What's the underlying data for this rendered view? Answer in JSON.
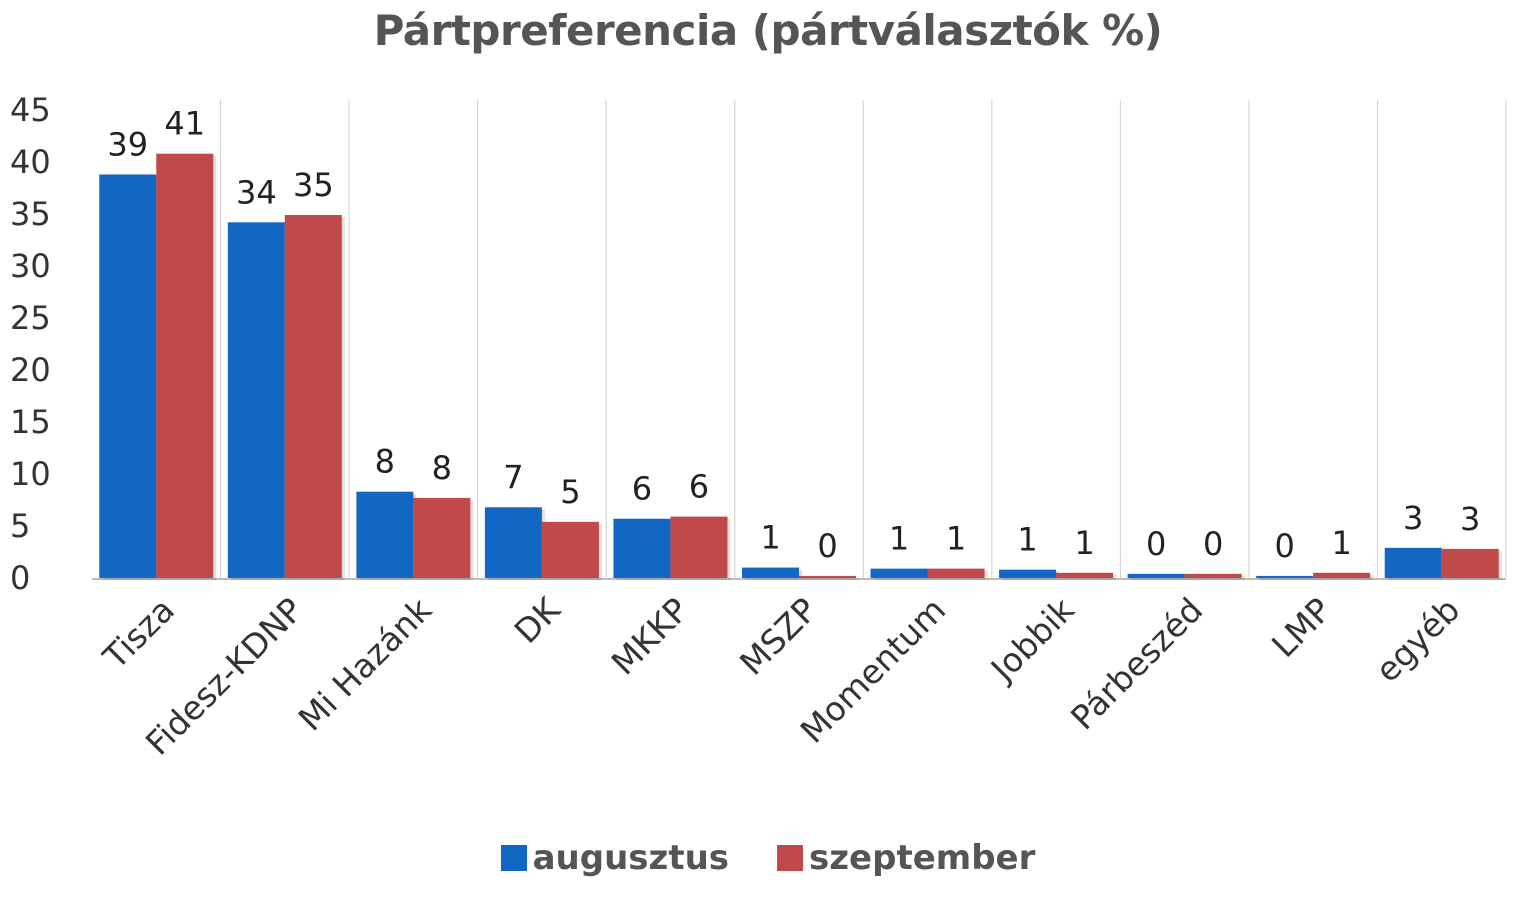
{
  "chart_data": {
    "type": "bar",
    "title": "Pártpreferencia (pártválasztók %)",
    "categories": [
      "Tisza",
      "Fidesz-KDNP",
      "Mi Hazánk",
      "DK",
      "MKKP",
      "MSZP",
      "Momentum",
      "Jobbik",
      "Párbeszéd",
      "LMP",
      "egyéb"
    ],
    "series": [
      {
        "name": "augusztus",
        "color": "#1266c4",
        "values": [
          38.8,
          34.2,
          8.3,
          6.8,
          5.7,
          1.0,
          0.9,
          0.8,
          0.4,
          0.2,
          2.9
        ],
        "labels": [
          "39",
          "34",
          "8",
          "7",
          "6",
          "1",
          "1",
          "1",
          "0",
          "0",
          "3"
        ]
      },
      {
        "name": "szeptember",
        "color": "#c0494a",
        "values": [
          40.8,
          34.9,
          7.7,
          5.4,
          5.9,
          0.2,
          0.9,
          0.5,
          0.4,
          0.5,
          2.8
        ],
        "labels": [
          "41",
          "35",
          "8",
          "5",
          "6",
          "0",
          "1",
          "1",
          "0",
          "1",
          "3"
        ]
      }
    ],
    "yticks": [
      "45",
      "40",
      "35",
      "30",
      "25",
      "20",
      "15",
      "10",
      "5",
      "0"
    ],
    "ylim": [
      0,
      45
    ],
    "grid": "vertical category separators",
    "legend_position": "bottom"
  }
}
